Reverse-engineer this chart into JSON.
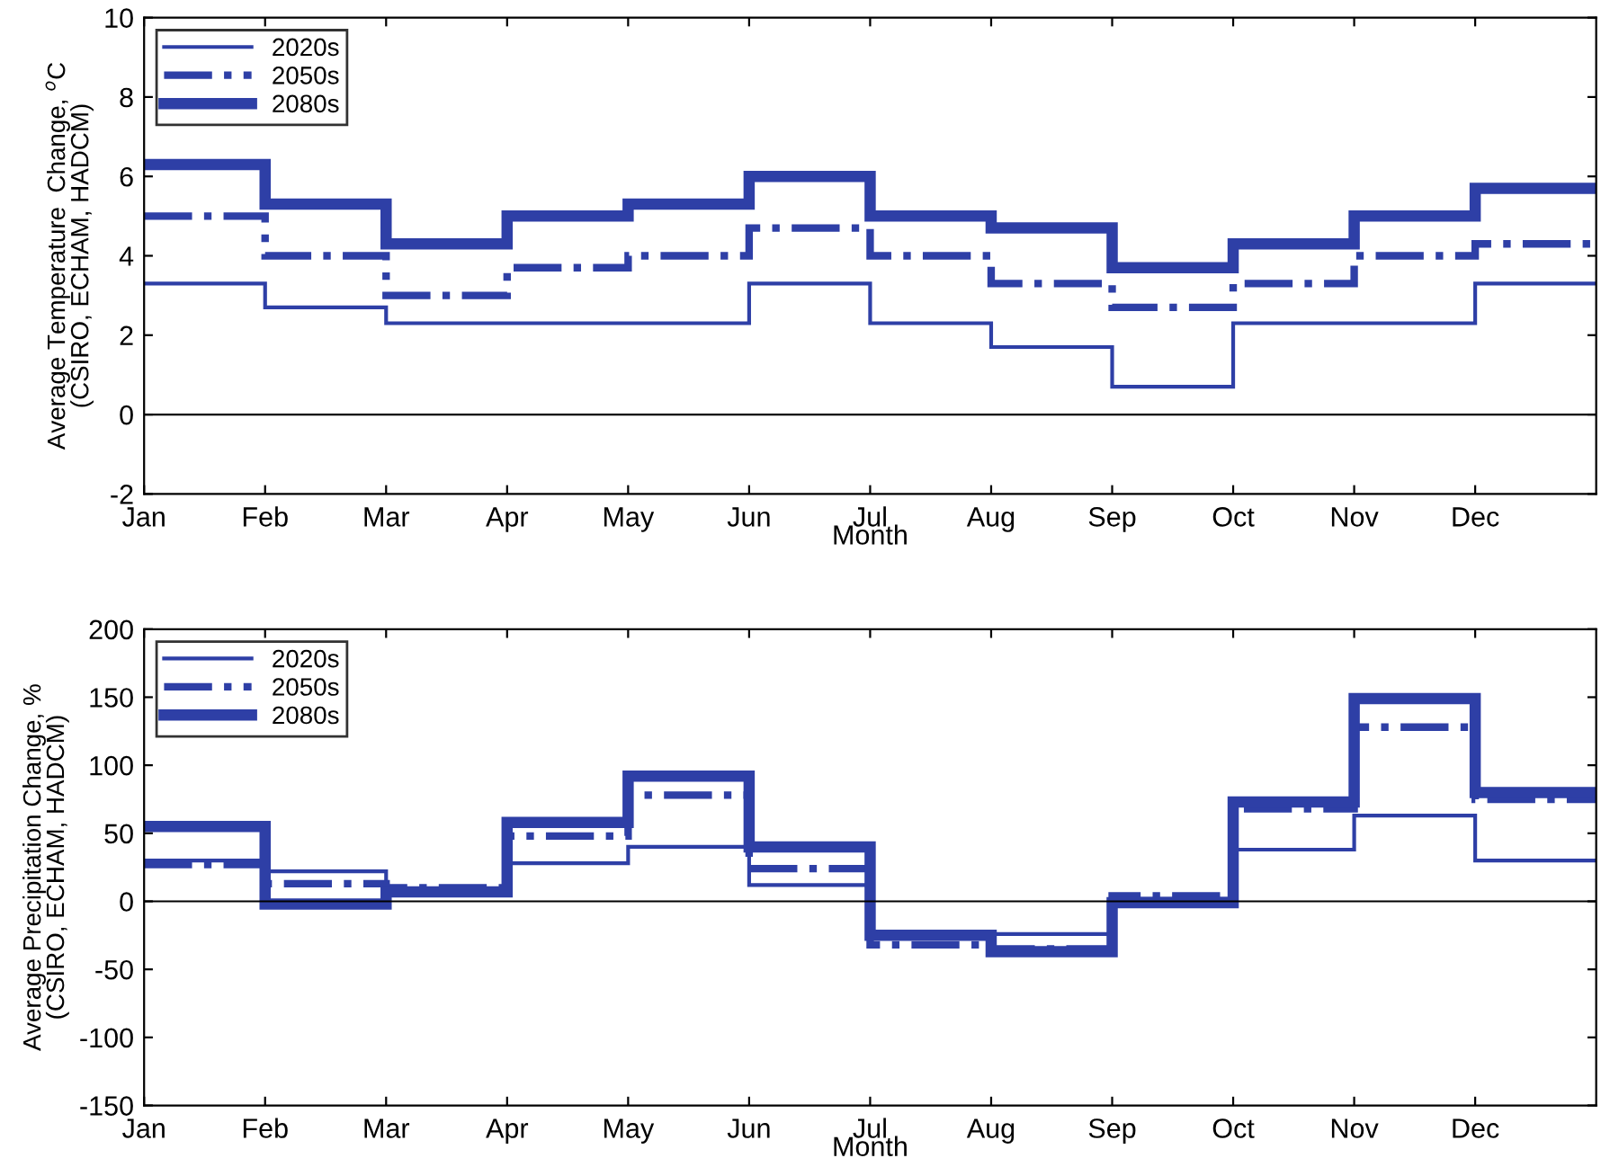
{
  "chart_data": [
    {
      "type": "step",
      "xlabel": "Month",
      "ylabel": "Average Temperature  Change, $^{o}$C\n(CSIRO, ECHAM, HADCM)",
      "categories": [
        "Jan",
        "Feb",
        "Mar",
        "Apr",
        "May",
        "Jun",
        "Jul",
        "Aug",
        "Sep",
        "Oct",
        "Nov",
        "Dec"
      ],
      "series": [
        {
          "name": "2020s",
          "color": "#2e3fa6",
          "line_style": "solid",
          "values": [
            3.3,
            2.7,
            2.3,
            2.3,
            2.3,
            3.3,
            2.3,
            1.7,
            0.7,
            2.3,
            2.3,
            3.3
          ]
        },
        {
          "name": "2050s",
          "color": "#2e3fa6",
          "line_style": "dashdot",
          "values": [
            5.0,
            4.0,
            3.0,
            3.7,
            4.0,
            4.7,
            4.0,
            3.3,
            2.7,
            3.3,
            4.0,
            4.3
          ]
        },
        {
          "name": "2080s",
          "color": "#2e3fa6",
          "line_style": "solid",
          "values": [
            6.3,
            5.3,
            4.3,
            5.0,
            5.3,
            6.0,
            5.0,
            4.7,
            3.7,
            4.3,
            5.0,
            5.7
          ]
        }
      ],
      "ylim": [
        -2,
        10
      ],
      "yticks": [
        -2,
        0,
        2,
        4,
        6,
        8,
        10
      ],
      "ref_lines": [
        {
          "axis": "y",
          "value": 0,
          "color": "#000000"
        }
      ],
      "legend": "top left",
      "grid": false
    },
    {
      "type": "step",
      "xlabel": "Month",
      "ylabel": "Average Precipitation Change, %\n(CSIRO, ECHAM, HADCM)",
      "categories": [
        "Jan",
        "Feb",
        "Mar",
        "Apr",
        "May",
        "Jun",
        "Jul",
        "Aug",
        "Sep",
        "Oct",
        "Nov",
        "Dec"
      ],
      "series": [
        {
          "name": "2020s",
          "color": "#2e3fa6",
          "line_style": "solid",
          "values": [
            30,
            22,
            5,
            28,
            40,
            12,
            -25,
            -24,
            2,
            38,
            63,
            30
          ]
        },
        {
          "name": "2050s",
          "color": "#2e3fa6",
          "line_style": "dashdot",
          "values": [
            27,
            13,
            10,
            48,
            78,
            24,
            -32,
            -35,
            4,
            68,
            128,
            75
          ]
        },
        {
          "name": "2080s",
          "color": "#2e3fa6",
          "line_style": "solid",
          "values": [
            55,
            -2,
            7,
            58,
            92,
            40,
            -25,
            -37,
            -1,
            73,
            149,
            80
          ]
        }
      ],
      "ylim": [
        -150,
        200
      ],
      "yticks": [
        -150,
        -100,
        -50,
        0,
        50,
        100,
        150,
        200
      ],
      "ref_lines": [
        {
          "axis": "y",
          "value": 0,
          "color": "#000000"
        }
      ],
      "legend": "top left",
      "grid": false
    }
  ]
}
